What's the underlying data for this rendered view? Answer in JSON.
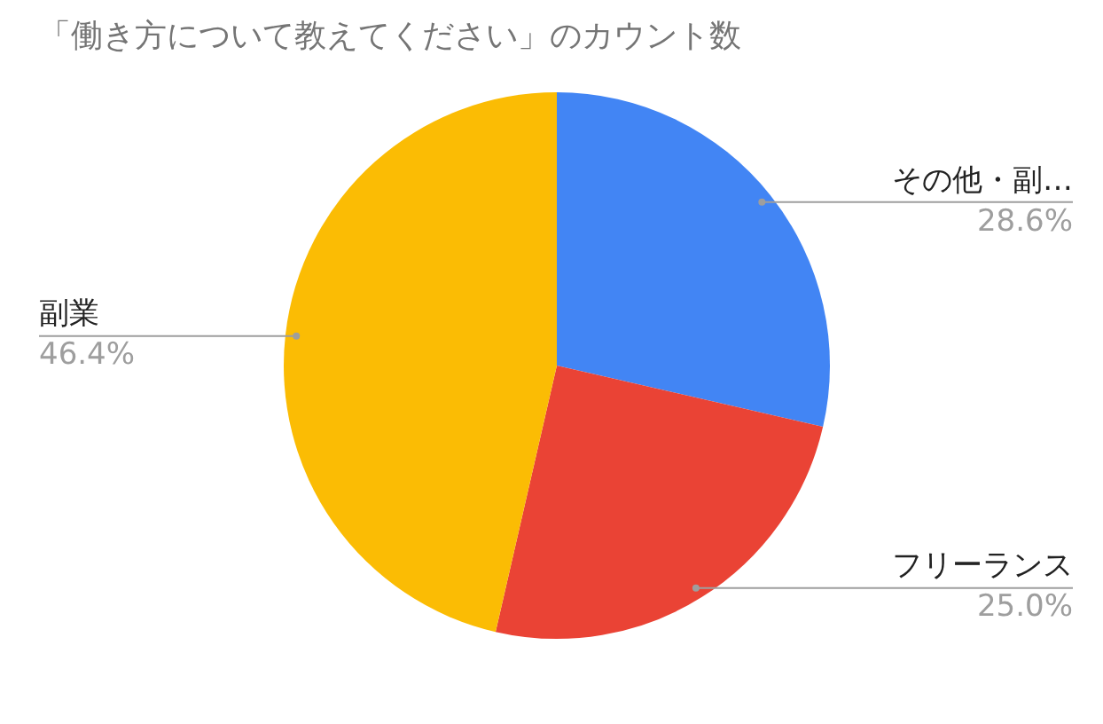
{
  "chart_data": {
    "type": "pie",
    "title": "「働き方について教えてください」のカウント数",
    "categories": [
      "その他・副…",
      "フリーランス",
      "副業"
    ],
    "values": [
      28.6,
      25.0,
      46.4
    ],
    "colors": [
      "#4285f4",
      "#ea4335",
      "#fbbc04"
    ],
    "value_labels": [
      "28.6%",
      "25.0%",
      "46.4%"
    ],
    "legend": false
  }
}
